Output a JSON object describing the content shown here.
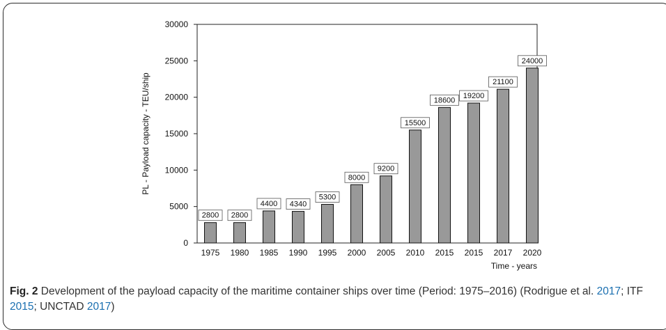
{
  "chart_data": {
    "type": "bar",
    "categories": [
      "1975",
      "1980",
      "1985",
      "1990",
      "1995",
      "2000",
      "2005",
      "2010",
      "2015",
      "2015",
      "2017",
      "2020"
    ],
    "values": [
      2800,
      2800,
      4400,
      4340,
      5300,
      8000,
      9200,
      15500,
      18600,
      19200,
      21100,
      24000
    ],
    "data_labels": [
      "2800",
      "2800",
      "4400",
      "4340",
      "5300",
      "8000",
      "9200",
      "15500",
      "18600",
      "19200",
      "21100",
      "24000"
    ],
    "xlabel": "Time - years",
    "ylabel": "PL - Payload capacity - TEU/ship",
    "ylim": [
      0,
      30000
    ],
    "yticks": [
      "0",
      "5000",
      "10000",
      "15000",
      "20000",
      "25000",
      "30000"
    ],
    "grid": false,
    "bar_color": "#999999"
  },
  "caption": {
    "label": "Fig. 2",
    "text_1": " Development of the payload capacity of the maritime container ships over time (Period: 1975–2016) (Rodrigue et al. ",
    "ref_1": "2017",
    "text_2": "; ITF ",
    "ref_2": "2015",
    "text_3": "; UNCTAD ",
    "ref_3": "2017",
    "text_4": ")"
  }
}
